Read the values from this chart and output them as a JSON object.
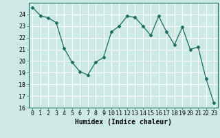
{
  "x": [
    0,
    1,
    2,
    3,
    4,
    5,
    6,
    7,
    8,
    9,
    10,
    11,
    12,
    13,
    14,
    15,
    16,
    17,
    18,
    19,
    20,
    21,
    22,
    23
  ],
  "y": [
    24.6,
    23.9,
    23.7,
    23.3,
    21.1,
    19.9,
    19.1,
    18.8,
    19.9,
    20.3,
    22.5,
    23.0,
    23.85,
    23.75,
    23.0,
    22.2,
    23.85,
    22.5,
    21.4,
    22.9,
    21.0,
    21.2,
    18.5,
    16.4
  ],
  "ylim": [
    16,
    25
  ],
  "xlim": [
    -0.5,
    23.5
  ],
  "yticks": [
    16,
    17,
    18,
    19,
    20,
    21,
    22,
    23,
    24
  ],
  "xticks": [
    0,
    1,
    2,
    3,
    4,
    5,
    6,
    7,
    8,
    9,
    10,
    11,
    12,
    13,
    14,
    15,
    16,
    17,
    18,
    19,
    20,
    21,
    22,
    23
  ],
  "xlabel": "Humidex (Indice chaleur)",
  "line_color": "#1a6b5e",
  "marker": "D",
  "marker_size": 2.5,
  "bg_color": "#cce9e5",
  "grid_color": "#ffffff",
  "tick_fontsize": 6,
  "label_fontsize": 7
}
